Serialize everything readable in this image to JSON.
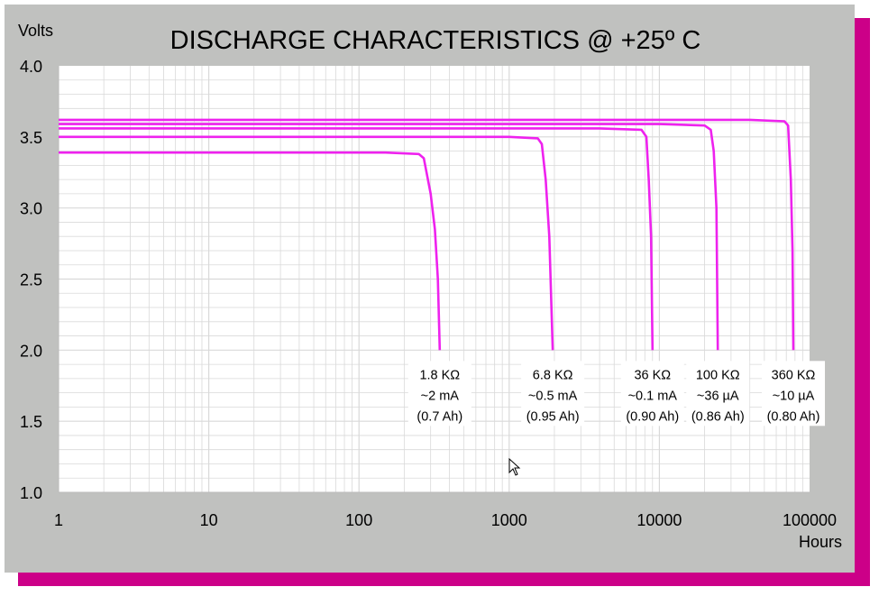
{
  "chart_data": {
    "type": "line",
    "title": "DISCHARGE CHARACTERISTICS @ +25º C",
    "ylabel": "Volts",
    "xlabel": "Hours",
    "xscale": "log",
    "xlim": [
      1,
      100000
    ],
    "ylim": [
      1.0,
      4.0
    ],
    "x_ticks": [
      "1",
      "10",
      "100",
      "1000",
      "10000",
      "100000"
    ],
    "y_ticks": [
      "4.0",
      "3.5",
      "3.0",
      "2.5",
      "2.0",
      "1.5",
      "1.0"
    ],
    "grid": true,
    "series": [
      {
        "name": "1.8 KΩ ~2 mA (0.7 Ah)",
        "label_lines": [
          "1.8 KΩ",
          "~2 mA",
          "(0.7 Ah)"
        ],
        "points": [
          [
            1,
            3.39
          ],
          [
            150,
            3.39
          ],
          [
            250,
            3.38
          ],
          [
            270,
            3.35
          ],
          [
            300,
            3.1
          ],
          [
            320,
            2.85
          ],
          [
            335,
            2.5
          ],
          [
            345,
            2.0
          ]
        ]
      },
      {
        "name": "6.8 KΩ ~0.5 mA (0.95 Ah)",
        "label_lines": [
          "6.8 KΩ",
          "~0.5 mA",
          "(0.95 Ah)"
        ],
        "points": [
          [
            1,
            3.5
          ],
          [
            1000,
            3.5
          ],
          [
            1550,
            3.49
          ],
          [
            1650,
            3.45
          ],
          [
            1750,
            3.2
          ],
          [
            1850,
            2.8
          ],
          [
            1950,
            2.0
          ]
        ]
      },
      {
        "name": "36 KΩ ~0.1 mA (0.90 Ah)",
        "label_lines": [
          "36 KΩ",
          "~0.1 mA",
          "(0.90 Ah)"
        ],
        "points": [
          [
            1,
            3.56
          ],
          [
            4000,
            3.56
          ],
          [
            7600,
            3.55
          ],
          [
            8200,
            3.5
          ],
          [
            8500,
            3.2
          ],
          [
            8800,
            2.8
          ],
          [
            9000,
            2.0
          ]
        ]
      },
      {
        "name": "100 KΩ ~36 µA (0.86 Ah)",
        "label_lines": [
          "100 KΩ",
          "~36 µA",
          "(0.86 Ah)"
        ],
        "points": [
          [
            1,
            3.59
          ],
          [
            10000,
            3.59
          ],
          [
            20000,
            3.58
          ],
          [
            22000,
            3.55
          ],
          [
            23000,
            3.4
          ],
          [
            24000,
            3.0
          ],
          [
            24500,
            2.0
          ]
        ]
      },
      {
        "name": "360 KΩ ~10 µA (0.80 Ah)",
        "label_lines": [
          "360 KΩ",
          "~10 µA",
          "(0.80 Ah)"
        ],
        "points": [
          [
            1,
            3.62
          ],
          [
            40000,
            3.62
          ],
          [
            68000,
            3.61
          ],
          [
            72000,
            3.58
          ],
          [
            75000,
            3.2
          ],
          [
            77000,
            2.7
          ],
          [
            78000,
            2.0
          ]
        ]
      }
    ],
    "colors": {
      "series": "#ee22ee",
      "panel": "#c0c1bf",
      "shadow": "#cc0088",
      "grid": "#d9d9d9",
      "label_box": "#ffffff"
    }
  }
}
